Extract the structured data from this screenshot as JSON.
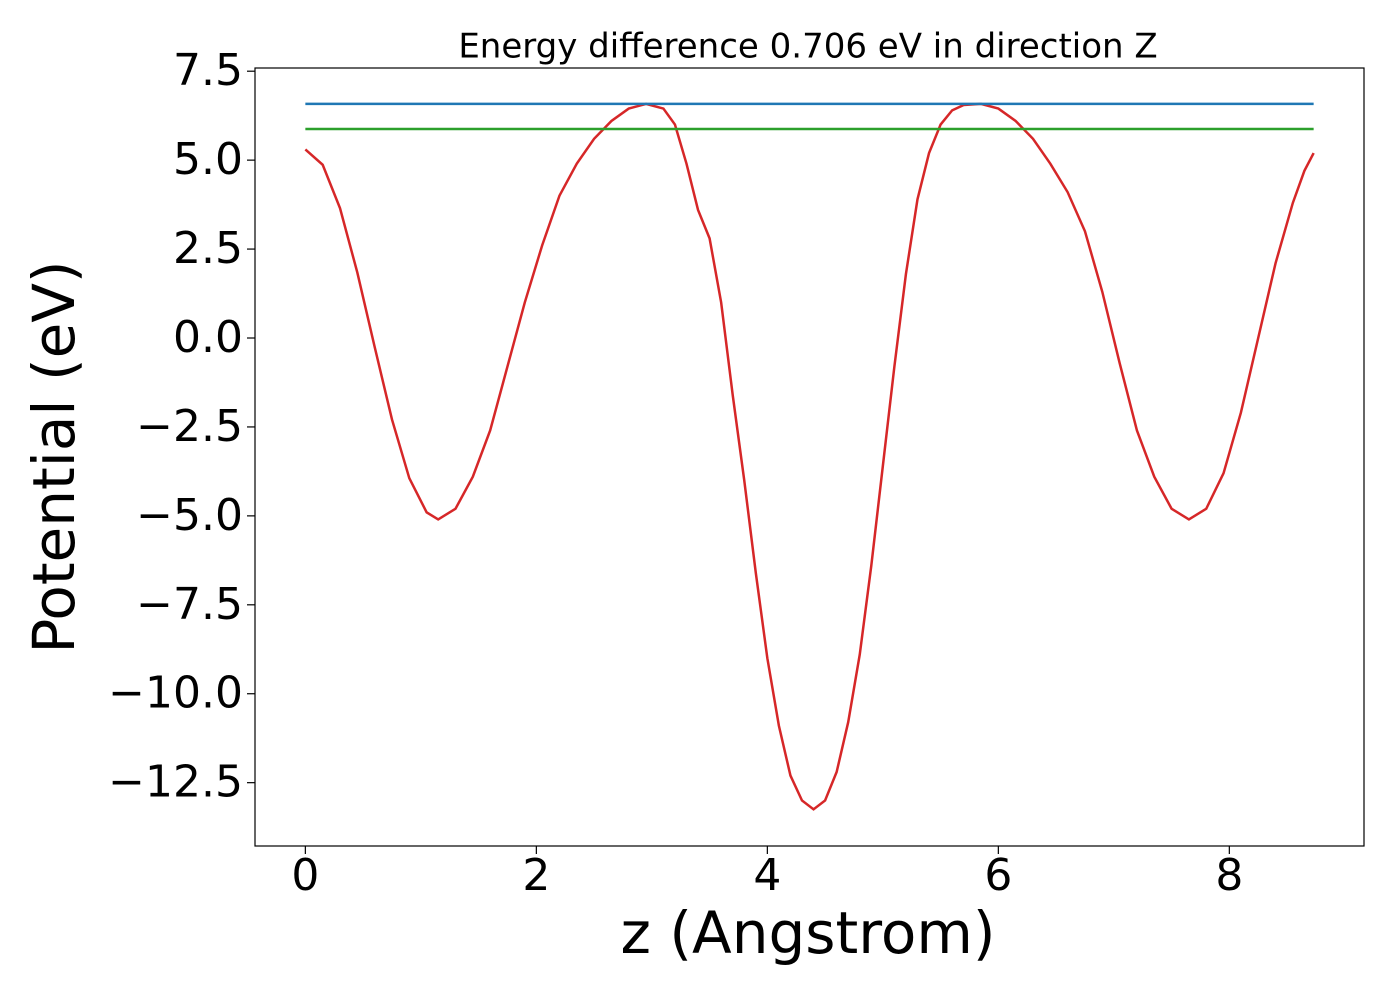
{
  "chart_data": {
    "type": "line",
    "title": "Energy difference 0.706 eV in direction Z",
    "xlabel": "z (Angstrom)",
    "ylabel": "Potential (eV)",
    "xlim": [
      -0.436,
      9.166
    ],
    "ylim": [
      -14.28,
      7.59
    ],
    "xticks": [
      0,
      2,
      4,
      6,
      8
    ],
    "yticks": [
      {
        "value": -12.5,
        "label": "−12.5"
      },
      {
        "value": -10,
        "label": "−10.0"
      },
      {
        "value": -7.5,
        "label": "−7.5"
      },
      {
        "value": -5,
        "label": "−5.0"
      },
      {
        "value": -2.5,
        "label": "−2.5"
      },
      {
        "value": 0,
        "label": "0.0"
      },
      2.5,
      {
        "value": 5,
        "label": "5.0"
      },
      7.5
    ],
    "series": [
      {
        "color": "#d62728",
        "x": [
          0,
          0.15,
          0.3,
          0.45,
          0.6,
          0.75,
          0.9,
          1.05,
          1.15,
          1.3,
          1.45,
          1.6,
          1.75,
          1.9,
          2.05,
          2.2,
          2.35,
          2.5,
          2.65,
          2.8,
          2.95,
          3.1,
          3.2,
          3.3,
          3.4,
          3.5,
          3.6,
          3.7,
          3.8,
          3.9,
          4.0,
          4.1,
          4.2,
          4.3,
          4.4,
          4.5,
          4.6,
          4.7,
          4.8,
          4.9,
          5.0,
          5.1,
          5.2,
          5.3,
          5.4,
          5.5,
          5.6,
          5.7,
          5.85,
          6.0,
          6.15,
          6.3,
          6.45,
          6.6,
          6.75,
          6.9,
          7.05,
          7.2,
          7.35,
          7.5,
          7.65,
          7.8,
          7.95,
          8.1,
          8.25,
          8.4,
          8.55,
          8.65,
          8.73
        ],
        "values": [
          5.3,
          4.87,
          3.65,
          1.84,
          -0.25,
          -2.29,
          -3.94,
          -4.9,
          -5.1,
          -4.8,
          -3.9,
          -2.6,
          -0.8,
          1.0,
          2.6,
          4.0,
          4.9,
          5.6,
          6.1,
          6.45,
          6.58,
          6.45,
          6.0,
          4.9,
          3.6,
          2.8,
          1.0,
          -1.6,
          -4.0,
          -6.6,
          -9.0,
          -10.9,
          -12.3,
          -13.0,
          -13.25,
          -13.0,
          -12.2,
          -10.8,
          -8.9,
          -6.4,
          -3.6,
          -0.8,
          1.8,
          3.9,
          5.2,
          6.0,
          6.4,
          6.55,
          6.58,
          6.45,
          6.1,
          5.6,
          4.9,
          4.1,
          3.0,
          1.3,
          -0.7,
          -2.6,
          -3.9,
          -4.8,
          -5.1,
          -4.8,
          -3.8,
          -2.1,
          0.0,
          2.1,
          3.8,
          4.7,
          5.2
        ]
      },
      {
        "color": "#1f77b4",
        "x": [
          0,
          8.73
        ],
        "values": [
          6.58,
          6.58
        ]
      },
      {
        "color": "#2ca02c",
        "x": [
          0,
          8.73
        ],
        "values": [
          5.874,
          5.874
        ]
      }
    ]
  }
}
